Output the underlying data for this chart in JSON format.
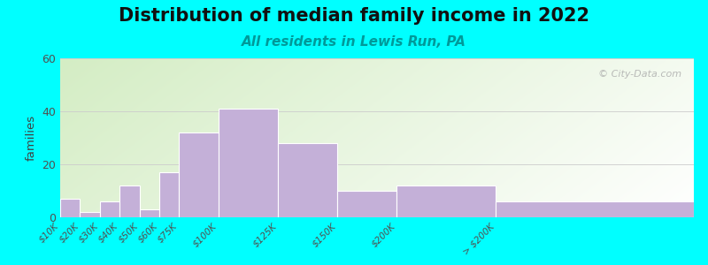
{
  "title": "Distribution of median family income in 2022",
  "subtitle": "All residents in Lewis Run, PA",
  "ylabel": "families",
  "background_color": "#00FFFF",
  "bar_color": "#c4b0d8",
  "bar_edge_color": "#ffffff",
  "bin_edges": [
    0,
    1,
    2,
    3,
    4,
    5,
    6,
    8,
    11,
    14,
    17,
    22,
    32
  ],
  "tick_labels": [
    "$10K",
    "$20K",
    "$30K",
    "$40K",
    "$50K",
    "$60K",
    "$75K",
    "$100K",
    "$125K",
    "$150K",
    "$200K",
    "> $200K"
  ],
  "values": [
    7,
    2,
    6,
    12,
    3,
    17,
    32,
    41,
    28,
    10,
    12,
    6
  ],
  "ylim": [
    0,
    60
  ],
  "yticks": [
    0,
    20,
    40,
    60
  ],
  "title_fontsize": 15,
  "subtitle_fontsize": 11,
  "subtitle_color": "#009999",
  "watermark_text": "© City-Data.com"
}
